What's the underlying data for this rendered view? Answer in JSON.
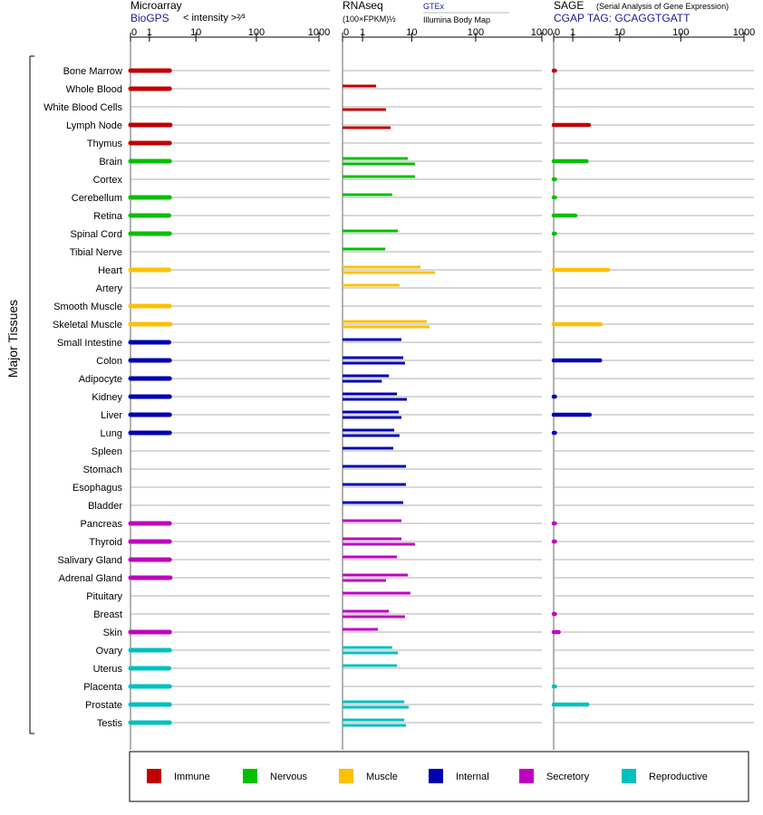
{
  "chart_data": {
    "type": "bar",
    "ylabel": "Major Tissues",
    "categories": [
      "Bone Marrow",
      "Whole Blood",
      "White Blood Cells",
      "Lymph Node",
      "Thymus",
      "Brain",
      "Cortex",
      "Cerebellum",
      "Retina",
      "Spinal Cord",
      "Tibial Nerve",
      "Heart",
      "Artery",
      "Smooth Muscle",
      "Skeletal Muscle",
      "Small Intestine",
      "Colon",
      "Adipocyte",
      "Kidney",
      "Liver",
      "Lung",
      "Spleen",
      "Stomach",
      "Esophagus",
      "Bladder",
      "Pancreas",
      "Thyroid",
      "Salivary Gland",
      "Adrenal Gland",
      "Pituitary",
      "Breast",
      "Skin",
      "Ovary",
      "Uterus",
      "Placenta",
      "Prostate",
      "Testis"
    ],
    "category_groups": [
      "Immune",
      "Immune",
      "Immune",
      "Immune",
      "Immune",
      "Nervous",
      "Nervous",
      "Nervous",
      "Nervous",
      "Nervous",
      "Nervous",
      "Muscle",
      "Muscle",
      "Muscle",
      "Muscle",
      "Internal",
      "Internal",
      "Internal",
      "Internal",
      "Internal",
      "Internal",
      "Internal",
      "Internal",
      "Internal",
      "Internal",
      "Secretory",
      "Secretory",
      "Secretory",
      "Secretory",
      "Secretory",
      "Secretory",
      "Secretory",
      "Reproductive",
      "Reproductive",
      "Reproductive",
      "Reproductive",
      "Reproductive"
    ],
    "legend": [
      {
        "name": "Immune",
        "color": "#c00000"
      },
      {
        "name": "Nervous",
        "color": "#00c000"
      },
      {
        "name": "Muscle",
        "color": "#ffc000"
      },
      {
        "name": "Internal",
        "color": "#0000b0"
      },
      {
        "name": "Secretory",
        "color": "#c000c0"
      },
      {
        "name": "Reproductive",
        "color": "#00c0c0"
      }
    ],
    "panels": [
      {
        "title": "Microarray",
        "axis_label": "< intensity >²⁄³",
        "xlim": [
          0,
          1000
        ],
        "xticks": [
          0,
          1,
          10,
          100,
          1000
        ],
        "series": [
          {
            "name": "BioGPS",
            "values": [
              3.2,
              3.2,
              null,
              3.3,
              3.2,
              3.2,
              null,
              3.2,
              3.1,
              3.2,
              null,
              3.1,
              null,
              3.2,
              3.3,
              3.1,
              3.2,
              3.2,
              3.2,
              3.2,
              3.2,
              null,
              null,
              null,
              null,
              3.2,
              3.2,
              3.2,
              3.3,
              null,
              null,
              3.2,
              3.2,
              3.1,
              3.2,
              3.2,
              3.2
            ]
          }
        ]
      },
      {
        "title": "RNAseq",
        "axis_label": "(100×FPKM)½",
        "xlim": [
          0,
          1000
        ],
        "xticks": [
          0,
          1,
          10,
          100,
          1000
        ],
        "series": [
          {
            "name": "GTEx",
            "values": [
              null,
              2.2,
              null,
              null,
              null,
              8.6,
              11.3,
              4.6,
              null,
              5.8,
              3.4,
              13.9,
              6.2,
              null,
              17.5,
              6.7,
              7.2,
              4.0,
              5.6,
              6.0,
              5.0,
              4.8,
              8.0,
              8.0,
              7.2,
              6.7,
              6.7,
              5.6,
              8.6,
              9.5,
              4.0,
              2.4,
              4.6,
              5.6,
              null,
              7.5,
              7.5
            ]
          },
          {
            "name": "Illumina Body Map",
            "values": [
              null,
              null,
              3.5,
              4.3,
              null,
              11.3,
              null,
              null,
              null,
              null,
              null,
              23.6,
              null,
              null,
              19.4,
              null,
              7.7,
              2.9,
              8.3,
              6.7,
              6.2,
              null,
              null,
              null,
              null,
              null,
              11.3,
              null,
              3.5,
              null,
              7.7,
              null,
              5.8,
              null,
              null,
              8.9,
              8.0
            ]
          }
        ]
      },
      {
        "title": "SAGE",
        "subtitle": "(Serial Analysis of Gene Expression)",
        "xlim": [
          0,
          1000
        ],
        "xticks": [
          0,
          1,
          10,
          100,
          1000
        ],
        "series": [
          {
            "name": "CGAP TAG: GCAGGTGATT",
            "values": [
              0.05,
              null,
              null,
              2.6,
              null,
              2.3,
              0.05,
              0.05,
              1.2,
              0.05,
              null,
              6.2,
              null,
              null,
              4.5,
              null,
              4.4,
              null,
              0.05,
              2.7,
              0.05,
              null,
              null,
              null,
              null,
              0.05,
              0.05,
              null,
              null,
              null,
              0.05,
              0.2,
              null,
              null,
              0.05,
              2.4,
              null
            ]
          }
        ]
      }
    ]
  }
}
